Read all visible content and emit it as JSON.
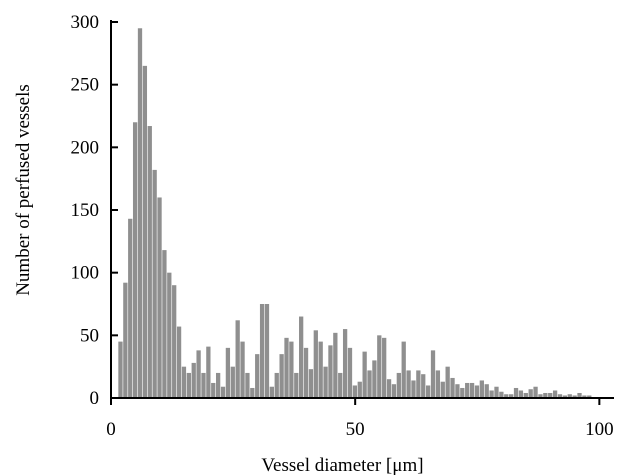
{
  "chart_data": {
    "type": "bar",
    "title": "",
    "xlabel": "Vessel diameter [μm]",
    "ylabel": "Number of perfused vessels",
    "xlim": [
      0,
      103
    ],
    "ylim": [
      0,
      300
    ],
    "x_ticks": [
      0,
      50,
      100
    ],
    "x_tick_labels": [
      "0",
      "50",
      "100"
    ],
    "y_ticks": [
      0,
      50,
      100,
      150,
      200,
      250,
      300
    ],
    "y_tick_labels": [
      "0",
      "50",
      "100",
      "150",
      "200",
      "250",
      "300"
    ],
    "grid": false,
    "legend": "none",
    "bar_color": "#8f8f8f",
    "bin_width": 1,
    "x": [
      2,
      3,
      4,
      5,
      6,
      7,
      8,
      9,
      10,
      11,
      12,
      13,
      14,
      15,
      16,
      17,
      18,
      19,
      20,
      21,
      22,
      23,
      24,
      25,
      26,
      27,
      28,
      29,
      30,
      31,
      32,
      33,
      34,
      35,
      36,
      37,
      38,
      39,
      40,
      41,
      42,
      43,
      44,
      45,
      46,
      47,
      48,
      49,
      50,
      51,
      52,
      53,
      54,
      55,
      56,
      57,
      58,
      59,
      60,
      61,
      62,
      63,
      64,
      65,
      66,
      67,
      68,
      69,
      70,
      71,
      72,
      73,
      74,
      75,
      76,
      77,
      78,
      79,
      80,
      81,
      82,
      83,
      84,
      85,
      86,
      87,
      88,
      89,
      90,
      91,
      92,
      93,
      94,
      95,
      96,
      97,
      98
    ],
    "values": [
      45,
      92,
      143,
      220,
      295,
      265,
      217,
      182,
      160,
      118,
      100,
      90,
      57,
      25,
      20,
      28,
      38,
      20,
      41,
      12,
      20,
      9,
      40,
      25,
      62,
      45,
      20,
      8,
      35,
      75,
      75,
      9,
      20,
      35,
      48,
      45,
      20,
      65,
      40,
      23,
      54,
      45,
      25,
      42,
      52,
      20,
      55,
      40,
      10,
      13,
      37,
      22,
      30,
      50,
      48,
      15,
      11,
      20,
      45,
      22,
      14,
      22,
      19,
      10,
      38,
      22,
      13,
      25,
      16,
      11,
      8,
      12,
      12,
      10,
      14,
      11,
      6,
      9,
      5,
      3,
      3,
      8,
      6,
      4,
      7,
      9,
      3,
      4,
      4,
      6,
      3,
      2,
      3,
      2,
      4,
      2,
      2
    ]
  }
}
